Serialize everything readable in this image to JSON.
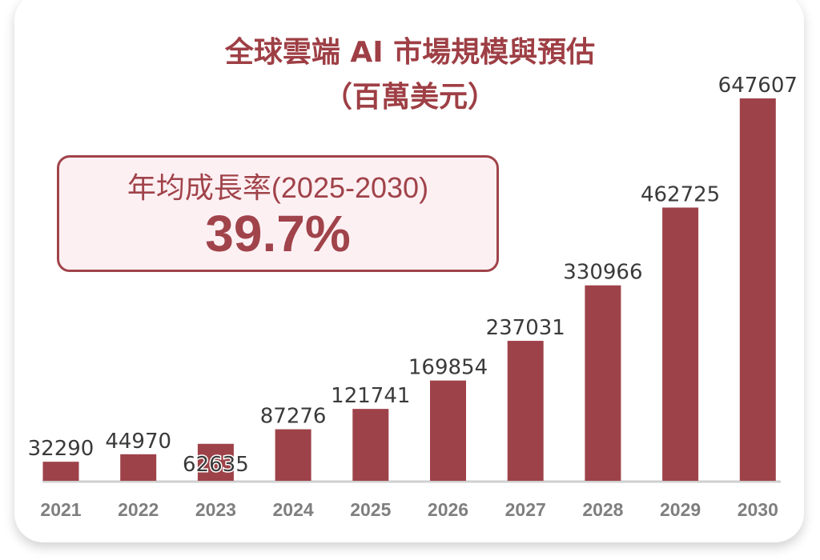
{
  "chart_data": {
    "type": "bar",
    "title": "全球雲端 AI 市場規模與預估",
    "subtitle": "（百萬美元）",
    "categories": [
      "2021",
      "2022",
      "2023",
      "2024",
      "2025",
      "2026",
      "2027",
      "2028",
      "2029",
      "2030"
    ],
    "values": [
      32290,
      44970,
      62635,
      87276,
      121741,
      169854,
      237031,
      330966,
      462725,
      647607
    ],
    "xlabel": "",
    "ylabel": "",
    "ylim": [
      0,
      647607
    ],
    "grid": false,
    "bar_color": "#9e4249",
    "annotation": {
      "label": "年均成長率(2025-2030)",
      "value": "39.7%"
    }
  }
}
